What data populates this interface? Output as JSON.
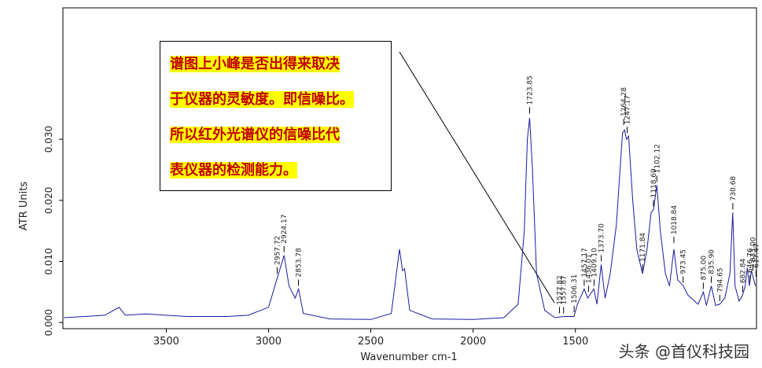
{
  "chart_data": {
    "type": "line",
    "xlabel": "Wavenumber cm-1",
    "ylabel": "ATR Units",
    "xlim": [
      4005,
      615
    ],
    "ylim": [
      -0.001,
      0.0515
    ],
    "xticks": [
      3500,
      3000,
      2500,
      2000,
      1500
    ],
    "yticks": [
      {
        "value": 0,
        "label": "0.000"
      },
      {
        "value": 0.01,
        "label": "0.010"
      },
      {
        "value": 0.02,
        "label": "0.020"
      },
      {
        "value": 0.03,
        "label": "0.030"
      }
    ],
    "x": [
      4000,
      3900,
      3800,
      3730,
      3700,
      3600,
      3500,
      3400,
      3300,
      3200,
      3100,
      3000,
      2960,
      2924,
      2900,
      2870,
      2853,
      2830,
      2700,
      2500,
      2400,
      2360,
      2345,
      2335,
      2310,
      2200,
      2000,
      1850,
      1780,
      1750,
      1735,
      1724,
      1710,
      1690,
      1650,
      1600,
      1558,
      1507,
      1490,
      1470,
      1457,
      1440,
      1410,
      1395,
      1374,
      1355,
      1330,
      1300,
      1270,
      1260,
      1250,
      1240,
      1220,
      1200,
      1172,
      1150,
      1130,
      1118,
      1102,
      1085,
      1060,
      1040,
      1019,
      1000,
      973,
      950,
      900,
      875,
      860,
      836,
      815,
      795,
      770,
      745,
      731,
      720,
      700,
      683,
      670,
      660,
      650,
      640,
      620
    ],
    "series": [
      {
        "name": "spectrum",
        "color": "#1a1aa0",
        "values": [
          0.0008,
          0.001,
          0.0012,
          0.0025,
          0.0012,
          0.0014,
          0.0012,
          0.001,
          0.001,
          0.001,
          0.0012,
          0.0025,
          0.007,
          0.011,
          0.006,
          0.004,
          0.0055,
          0.0015,
          0.0006,
          0.0005,
          0.0015,
          0.012,
          0.0085,
          0.0088,
          0.002,
          0.0006,
          0.0005,
          0.0008,
          0.003,
          0.015,
          0.03,
          0.0335,
          0.025,
          0.008,
          0.002,
          0.0008,
          0.001,
          0.001,
          0.003,
          0.0045,
          0.0055,
          0.004,
          0.0055,
          0.003,
          0.0095,
          0.004,
          0.008,
          0.016,
          0.031,
          0.0315,
          0.03,
          0.0305,
          0.02,
          0.012,
          0.008,
          0.012,
          0.018,
          0.0185,
          0.0225,
          0.015,
          0.008,
          0.006,
          0.012,
          0.007,
          0.006,
          0.0045,
          0.003,
          0.005,
          0.0028,
          0.006,
          0.0028,
          0.003,
          0.004,
          0.008,
          0.018,
          0.006,
          0.0035,
          0.0045,
          0.006,
          0.009,
          0.006,
          0.0085,
          0.006
        ]
      }
    ],
    "peaks": {
      "x": [
        2957.72,
        2924.17,
        2853.78,
        1723.85,
        1577.82,
        1557.87,
        1506.31,
        1457.17,
        1436.01,
        1409.1,
        1373.7,
        1264.28,
        1247.17,
        1171.84,
        1118.69,
        1102.12,
        1018.84,
        973.45,
        875,
        835.9,
        794.65,
        730.68,
        682.84,
        646.76,
        633,
        617.47
      ],
      "y": [
        0.0075,
        0.011,
        0.0055,
        0.0337,
        0.001,
        0.001,
        0.0012,
        0.0055,
        0.0045,
        0.0055,
        0.0095,
        0.0318,
        0.0305,
        0.008,
        0.0185,
        0.0225,
        0.0125,
        0.006,
        0.005,
        0.006,
        0.003,
        0.018,
        0.0045,
        0.0062,
        0.008,
        0.007
      ],
      "labels": [
        "2957.72",
        "2924.17",
        "2853.78",
        "1723.85",
        "1577.82",
        "1557.87",
        "1506.31",
        "1457.17",
        "1436.01",
        "1409.10",
        "1373.70",
        "1264.28",
        "1247.17",
        "1171.84",
        "1118.69",
        "1102.12",
        "1018.84",
        "973.45",
        "875.00",
        "835.90",
        "794.65",
        "730.68",
        "682.84",
        "646.76",
        "633.00",
        "617.47"
      ]
    },
    "annotation_lines": [
      "谱图上小峰是否出得来取决",
      "于仪器的灵敏度。即信噪比。",
      "所以红外光谱仪的信噪比代",
      "表仪器的检测能力。"
    ],
    "watermark": "头条 @首仪科技园"
  }
}
